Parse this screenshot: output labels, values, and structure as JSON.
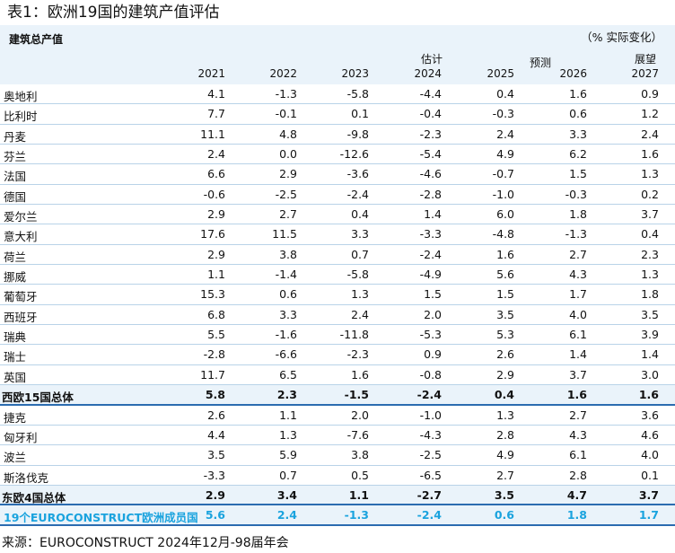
{
  "title": "表1：欧洲19国的建筑产值评估",
  "section_label": "建筑总产值",
  "unit_note": "（%  实际变化）",
  "group_labels": {
    "estimate": "估计",
    "forecast": "预测",
    "outlook": "展望"
  },
  "years": [
    "2021",
    "2022",
    "2023",
    "2024",
    "2025",
    "2026",
    "2027"
  ],
  "rows": [
    {
      "name": "奥地利",
      "values": [
        "4.1",
        "-1.3",
        "-5.8",
        "-4.4",
        "0.4",
        "1.6",
        "0.9"
      ]
    },
    {
      "name": "比利时",
      "values": [
        "7.7",
        "-0.1",
        "0.1",
        "-0.4",
        "-0.3",
        "0.6",
        "1.2"
      ]
    },
    {
      "name": "丹麦",
      "values": [
        "11.1",
        "4.8",
        "-9.8",
        "-2.3",
        "2.4",
        "3.3",
        "2.4"
      ]
    },
    {
      "name": "芬兰",
      "values": [
        "2.4",
        "0.0",
        "-12.6",
        "-5.4",
        "4.9",
        "6.2",
        "1.6"
      ]
    },
    {
      "name": "法国",
      "values": [
        "6.6",
        "2.9",
        "-3.6",
        "-4.6",
        "-0.7",
        "1.5",
        "1.3"
      ]
    },
    {
      "name": "德国",
      "values": [
        "-0.6",
        "-2.5",
        "-2.4",
        "-2.8",
        "-1.0",
        "-0.3",
        "0.2"
      ]
    },
    {
      "name": "爱尔兰",
      "values": [
        "2.9",
        "2.7",
        "0.4",
        "1.4",
        "6.0",
        "1.8",
        "3.7"
      ]
    },
    {
      "name": "意大利",
      "values": [
        "17.6",
        "11.5",
        "3.3",
        "-3.3",
        "-4.8",
        "-1.3",
        "0.4"
      ]
    },
    {
      "name": "荷兰",
      "values": [
        "2.9",
        "3.8",
        "0.7",
        "-2.4",
        "1.6",
        "2.7",
        "2.3"
      ]
    },
    {
      "name": "挪威",
      "values": [
        "1.1",
        "-1.4",
        "-5.8",
        "-4.9",
        "5.6",
        "4.3",
        "1.3"
      ]
    },
    {
      "name": "葡萄牙",
      "values": [
        "15.3",
        "0.6",
        "1.3",
        "1.5",
        "1.5",
        "1.7",
        "1.8"
      ]
    },
    {
      "name": "西班牙",
      "values": [
        "6.8",
        "3.3",
        "2.4",
        "2.0",
        "3.5",
        "4.0",
        "3.5"
      ]
    },
    {
      "name": "瑞典",
      "values": [
        "5.5",
        "-1.6",
        "-11.8",
        "-5.3",
        "5.3",
        "6.1",
        "3.9"
      ]
    },
    {
      "name": "瑞士",
      "values": [
        "-2.8",
        "-6.6",
        "-2.3",
        "0.9",
        "2.6",
        "1.4",
        "1.4"
      ]
    },
    {
      "name": "英国",
      "values": [
        "11.7",
        "6.5",
        "1.6",
        "-0.8",
        "2.9",
        "3.7",
        "3.0"
      ]
    },
    {
      "name": "西欧15国总体",
      "values": [
        "5.8",
        "2.3",
        "-1.5",
        "-2.4",
        "0.4",
        "1.6",
        "1.6"
      ],
      "style": "bold"
    },
    {
      "name": "捷克",
      "values": [
        "2.6",
        "1.1",
        "2.0",
        "-1.0",
        "1.3",
        "2.7",
        "3.6"
      ]
    },
    {
      "name": "匈牙利",
      "values": [
        "4.4",
        "1.3",
        "-7.6",
        "-4.3",
        "2.8",
        "4.3",
        "4.6"
      ]
    },
    {
      "name": "波兰",
      "values": [
        "3.5",
        "5.9",
        "3.8",
        "-2.5",
        "4.9",
        "6.1",
        "4.0"
      ]
    },
    {
      "name": "斯洛伐克",
      "values": [
        "-3.3",
        "0.7",
        "0.5",
        "-6.5",
        "2.7",
        "2.8",
        "0.1"
      ]
    },
    {
      "name": "东欧4国总体",
      "values": [
        "2.9",
        "3.4",
        "1.1",
        "-2.7",
        "3.5",
        "4.7",
        "3.7"
      ],
      "style": "bold"
    },
    {
      "name": "19个EUROCONSTRUCT欧洲成员国",
      "values": [
        "5.6",
        "2.4",
        "-1.3",
        "-2.4",
        "0.6",
        "1.8",
        "1.7"
      ],
      "style": "hl"
    }
  ],
  "source": "来源：EUROCONSTRUCT 2024年12月-98届年会",
  "colors": {
    "header_bg": "#eaf3fa",
    "row_border": "#b9d3e8",
    "total_border": "#2b6cb0",
    "highlight_text": "#1aa3de"
  }
}
